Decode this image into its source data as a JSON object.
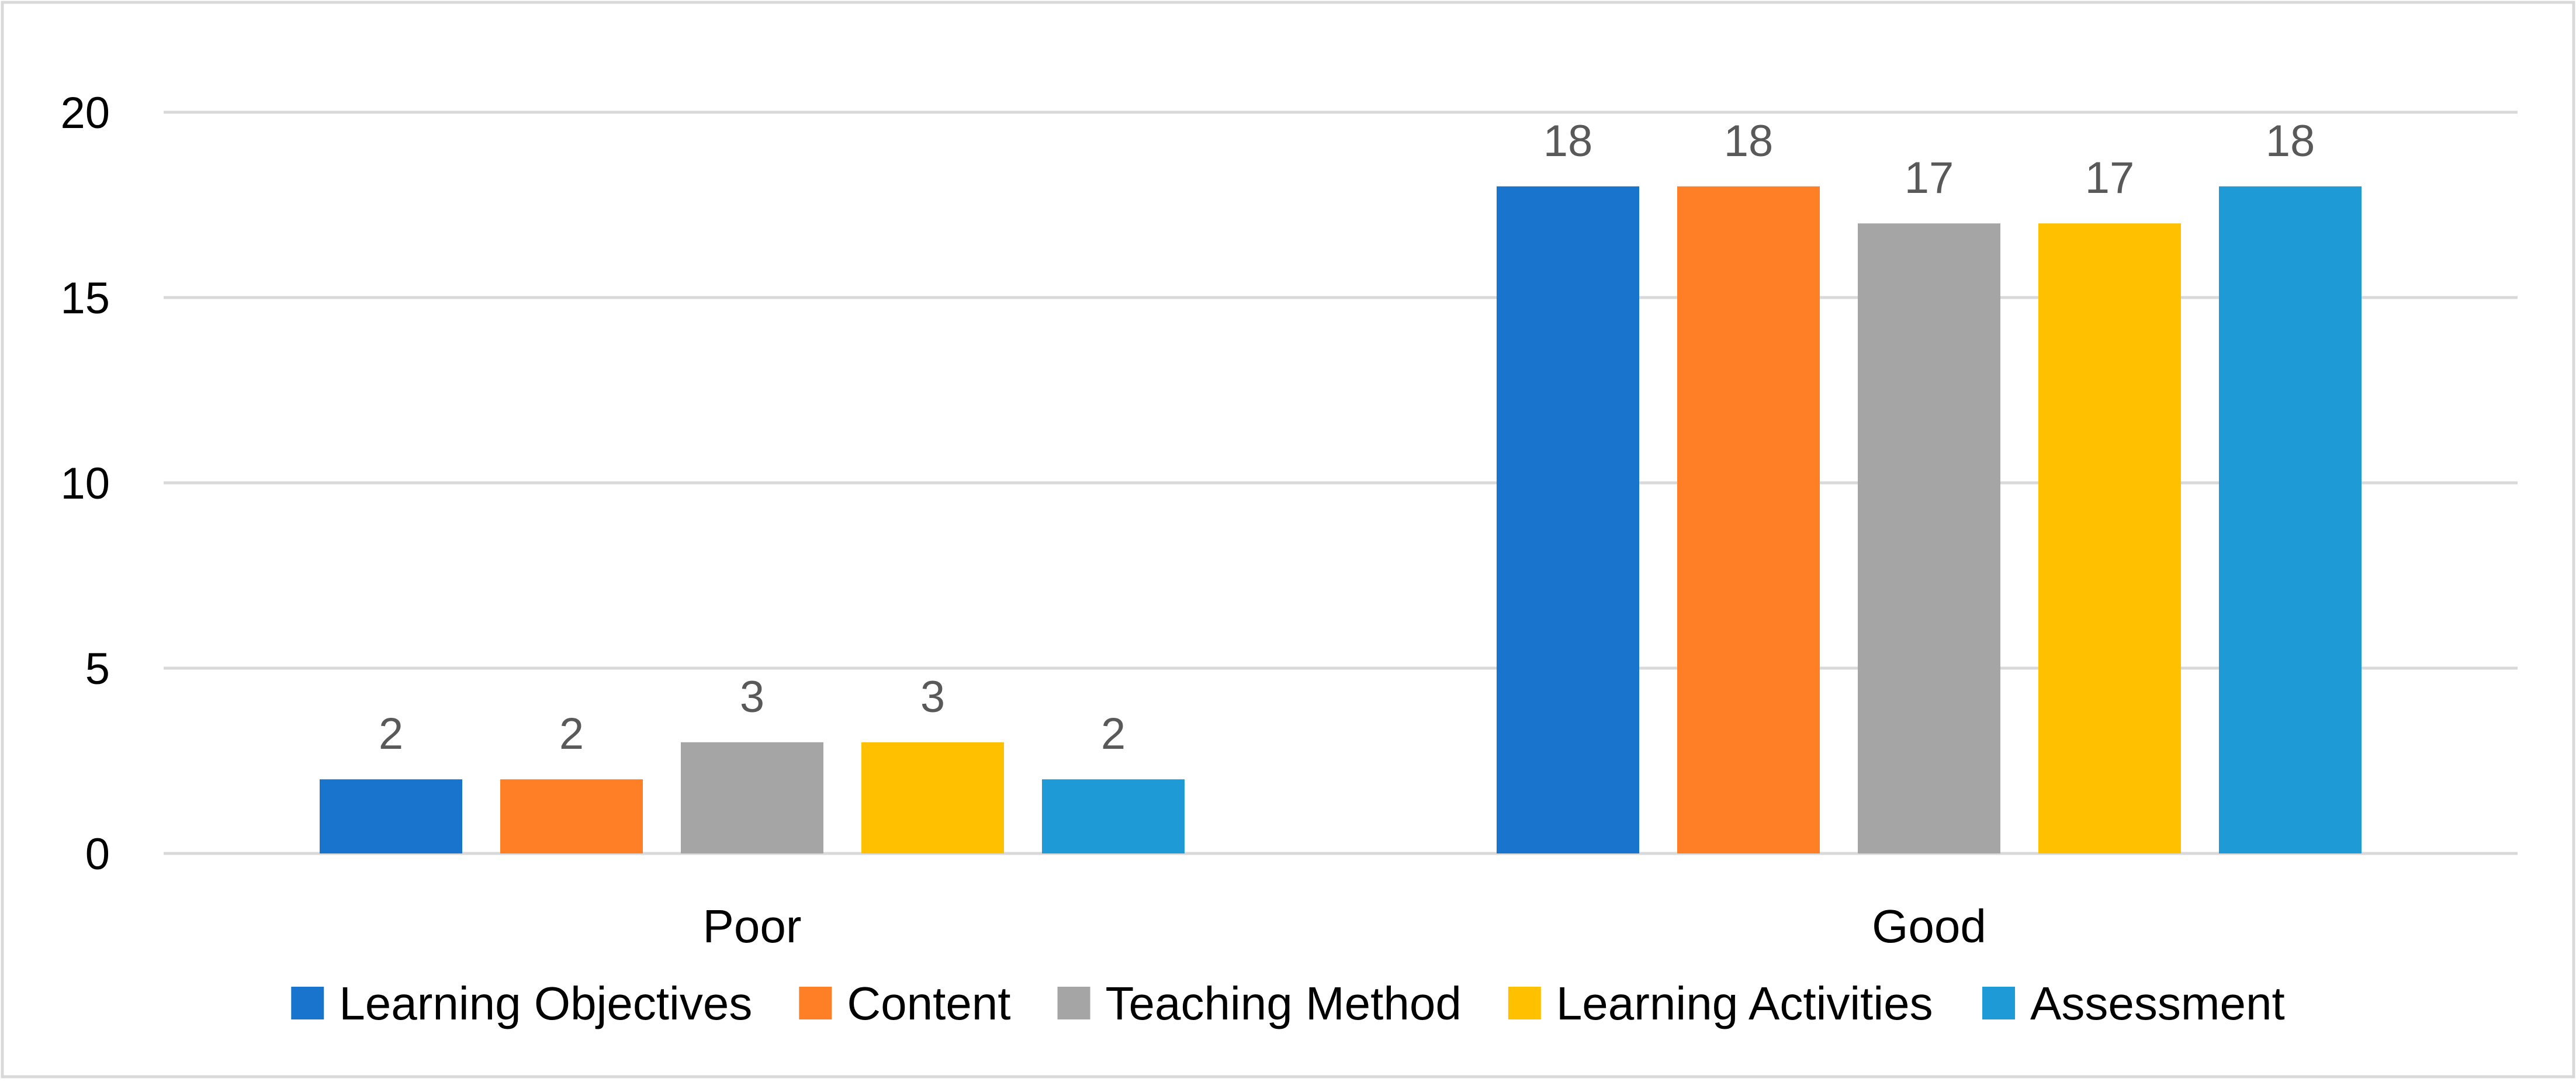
{
  "chart_data": {
    "type": "bar",
    "title": "",
    "xlabel": "",
    "ylabel": "",
    "categories": [
      "Poor",
      "Good"
    ],
    "series": [
      {
        "name": "Learning Objectives",
        "values": [
          2,
          18
        ],
        "color": "#1874CD"
      },
      {
        "name": "Content",
        "values": [
          2,
          18
        ],
        "color": "#FF7F27"
      },
      {
        "name": "Teaching Method",
        "values": [
          3,
          17
        ],
        "color": "#A5A5A5"
      },
      {
        "name": "Learning Activities",
        "values": [
          3,
          17
        ],
        "color": "#FFC000"
      },
      {
        "name": "Assessment",
        "values": [
          2,
          18
        ],
        "color": "#1E9BD7"
      }
    ],
    "ylim": [
      0,
      20
    ],
    "yticks": [
      "0",
      "5",
      "10",
      "15",
      "20"
    ],
    "grid": true,
    "data_labels": true,
    "legend_position": "bottom"
  }
}
